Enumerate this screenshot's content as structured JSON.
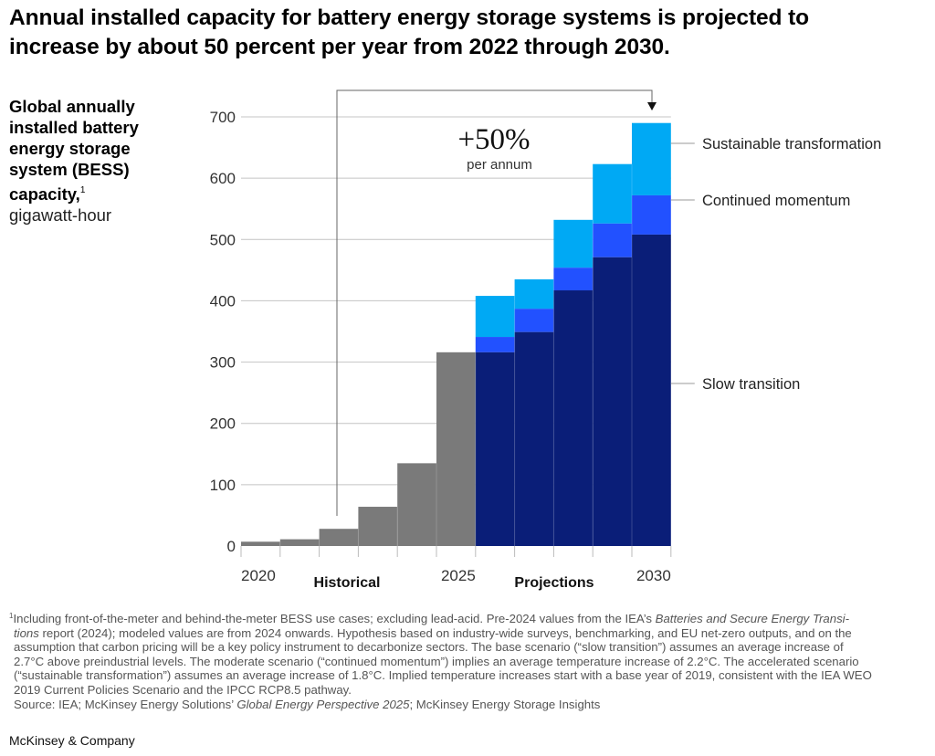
{
  "title_line1": "Annual installed capacity for battery energy storage systems is projected to",
  "title_line2": "increase by about 50 percent per year from 2022 through 2030.",
  "ylabel": {
    "bold_lines": [
      "Global annually",
      "installed battery",
      "energy storage",
      "system (BESS)",
      "capacity,"
    ],
    "footnote_marker": "1",
    "unit": "gigawatt-hour"
  },
  "chart_data": {
    "type": "bar",
    "stacked": true,
    "title": "Annual installed capacity for battery energy storage systems is projected to increase by about 50 percent per year from 2022 through 2030.",
    "ylabel": "Global annually installed battery energy storage system (BESS) capacity, gigawatt-hour",
    "xlabel": "",
    "ylim": [
      0,
      700
    ],
    "yticks": [
      0,
      100,
      200,
      300,
      400,
      500,
      600,
      700
    ],
    "grid": true,
    "categories": [
      "2020",
      "2021",
      "2022",
      "2023",
      "2024",
      "2025",
      "2026",
      "2027",
      "2028",
      "2029",
      "2030"
    ],
    "xtick_labels": [
      {
        "index": 0,
        "label": "2020"
      },
      {
        "index": 5,
        "label": "2025"
      },
      {
        "index": 10,
        "label": "2030"
      }
    ],
    "period_labels": [
      {
        "label": "Historical",
        "from": 0,
        "to": 5
      },
      {
        "label": "Projections",
        "from": 6,
        "to": 10
      }
    ],
    "historical": {
      "name": "Historical",
      "color": "#7a7a7a",
      "values": [
        7,
        11,
        28,
        64,
        135,
        316,
        null,
        null,
        null,
        null,
        null
      ]
    },
    "series": [
      {
        "name": "Slow transition",
        "color": "#0a1e78",
        "cumulative_values": [
          null,
          null,
          null,
          null,
          null,
          null,
          316,
          349,
          417,
          471,
          508
        ]
      },
      {
        "name": "Continued momentum",
        "color": "#2251ff",
        "cumulative_values": [
          null,
          null,
          null,
          null,
          null,
          null,
          341,
          387,
          454,
          526,
          572
        ]
      },
      {
        "name": "Sustainable transformation",
        "color": "#00a9f4",
        "cumulative_values": [
          null,
          null,
          null,
          null,
          null,
          null,
          408,
          435,
          532,
          623,
          690
        ]
      }
    ],
    "legend_placement": "right",
    "legend": [
      "Sustainable transformation",
      "Continued momentum",
      "Slow transition"
    ],
    "annotation": {
      "value": "+50%",
      "subtext": "per annum",
      "arrow_from_category": "2022",
      "arrow_to_category": "2030"
    }
  },
  "footnote": {
    "lines": [
      [
        "¹",
        "Including front-of-the-meter and behind-the-meter BESS use cases; excluding lead-acid. Pre-2024 values from the IEA’s ",
        "Batteries and Secure Energy Transi-"
      ],
      [
        "",
        "",
        "tions"
      ],
      [
        "",
        " report (2024); modeled values are from 2024 onwards. Hypothesis based on industry-wide surveys, benchmarking, and EU net-zero outputs, and on the",
        ""
      ]
    ],
    "line1_prefix": "Including front-of-the-meter and behind-the-meter BESS use cases; excluding lead-acid. Pre-2024 values from the IEA’s ",
    "line1_italic": "Batteries and Secure Energy Transi-",
    "line2_italic": "tions",
    "line2_rest": " report (2024); modeled values are from 2024 onwards. Hypothesis based on industry-wide surveys, benchmarking, and EU net-zero outputs, and on the",
    "line3": "assumption that carbon pricing will be a key policy instrument to decarbonize sectors. The base scenario (“slow transition”) assumes an average increase of",
    "line4": "2.7°C above preindustrial levels. The moderate scenario (“continued momentum”) implies an average temperature increase of 2.2°C. The accelerated scenario",
    "line5": "(“sustainable transformation”) assumes an average increase of 1.8°C. Implied temperature increases start with a base year of 2019, consistent with the IEA WEO",
    "line6": "2019 Current Policies Scenario and the IPCC RCP8.5 pathway.",
    "source_prefix": "Source: IEA; McKinsey Energy Solutions’ ",
    "source_italic": "Global Energy Perspective 2025",
    "source_suffix": "; McKinsey Energy Storage Insights",
    "marker": "1"
  },
  "brand": "McKinsey & Company"
}
